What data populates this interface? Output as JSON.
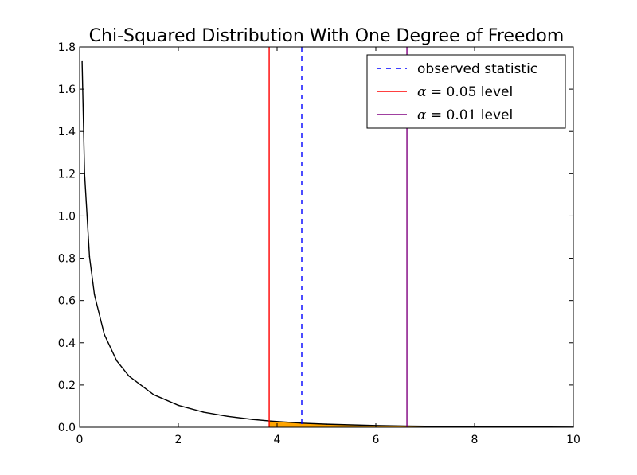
{
  "chart_data": {
    "type": "line",
    "title": "Chi-Squared Distribution With One Degree of Freedom",
    "xlabel": "",
    "ylabel": "",
    "xlim": [
      0,
      10
    ],
    "ylim": [
      0,
      1.8
    ],
    "x_ticks": [
      "0",
      "2",
      "4",
      "6",
      "8",
      "10"
    ],
    "y_ticks": [
      "0.0",
      "0.2",
      "0.4",
      "0.6",
      "0.8",
      "1.0",
      "1.2",
      "1.4",
      "1.6",
      "1.8"
    ],
    "grid": false,
    "legend_position": "top-right",
    "series": [
      {
        "name": "",
        "kind": "pdf_curve",
        "color": "#000000",
        "x": [
          0.05,
          0.1,
          0.2,
          0.3,
          0.5,
          0.75,
          1.0,
          1.5,
          2.0,
          2.5,
          3.0,
          3.5,
          3.84,
          4.5,
          5.0,
          6.0,
          6.63,
          7.0,
          8.0,
          9.0,
          10.0
        ],
        "y": [
          1.7301,
          1.2001,
          0.807,
          0.6276,
          0.4394,
          0.315,
          0.242,
          0.1542,
          0.1038,
          0.072,
          0.0514,
          0.0372,
          0.0298,
          0.0195,
          0.0146,
          0.0081,
          0.0057,
          0.0047,
          0.0026,
          0.0015,
          0.0008
        ]
      }
    ],
    "shaded_region": {
      "x_from": 3.84,
      "x_to": 10,
      "color": "#ffa500"
    },
    "vertical_lines": [
      {
        "label_text": "observed statistic",
        "x": 4.5,
        "color": "#0000ff",
        "style": "dashed"
      },
      {
        "label_alpha": "α",
        "label_eq": " = ",
        "label_num": "0.05",
        "label_tail": " level",
        "x": 3.84,
        "color": "#ff0000",
        "style": "solid"
      },
      {
        "label_alpha": "α",
        "label_eq": " = ",
        "label_num": "0.01",
        "label_tail": " level",
        "x": 6.63,
        "color": "#800080",
        "style": "solid"
      }
    ]
  }
}
